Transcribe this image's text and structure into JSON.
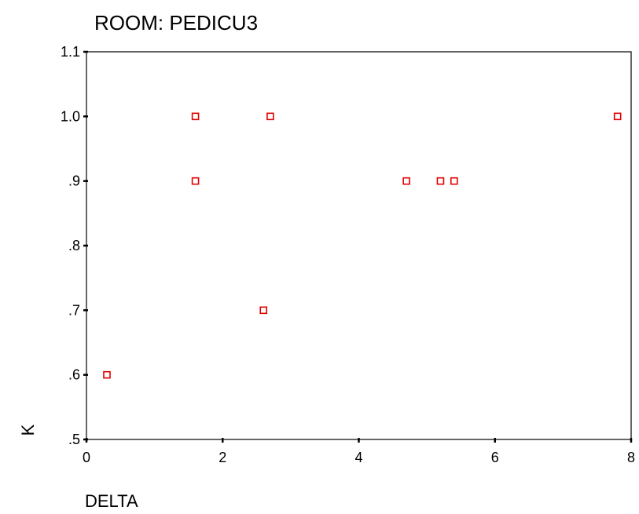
{
  "chart_data": {
    "type": "scatter",
    "title": "ROOM:  PEDICU3",
    "xlabel": "DELTA",
    "ylabel": "K",
    "xlim": [
      0,
      8
    ],
    "ylim": [
      0.5,
      1.1
    ],
    "x_ticks": [
      {
        "value": 0,
        "label": "0"
      },
      {
        "value": 2,
        "label": "2"
      },
      {
        "value": 4,
        "label": "4"
      },
      {
        "value": 6,
        "label": "6"
      },
      {
        "value": 8,
        "label": "8"
      }
    ],
    "y_ticks": [
      {
        "value": 0.5,
        "label": ".5"
      },
      {
        "value": 0.6,
        "label": ".6"
      },
      {
        "value": 0.7,
        "label": ".7"
      },
      {
        "value": 0.8,
        "label": ".8"
      },
      {
        "value": 0.9,
        "label": ".9"
      },
      {
        "value": 1.0,
        "label": "1.0"
      },
      {
        "value": 1.1,
        "label": "1.1"
      }
    ],
    "grid": false,
    "marker_color": "#e00000",
    "series": [
      {
        "points": [
          {
            "x": 0.3,
            "y": 0.6
          },
          {
            "x": 1.6,
            "y": 1.0
          },
          {
            "x": 1.6,
            "y": 0.9
          },
          {
            "x": 2.6,
            "y": 0.7
          },
          {
            "x": 2.7,
            "y": 1.0
          },
          {
            "x": 4.7,
            "y": 0.9
          },
          {
            "x": 5.2,
            "y": 0.9
          },
          {
            "x": 5.4,
            "y": 0.9
          },
          {
            "x": 7.8,
            "y": 1.0
          }
        ]
      }
    ]
  }
}
